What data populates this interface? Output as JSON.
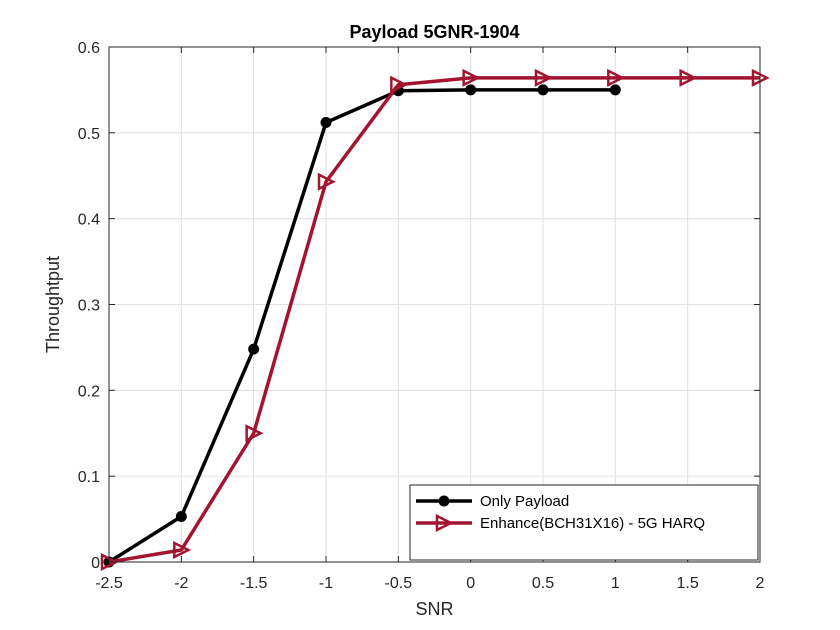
{
  "chart_data": {
    "type": "line",
    "title": "Payload 5GNR-1904",
    "xlabel": "SNR",
    "ylabel": "Throughtput",
    "xlim": [
      -2.5,
      2
    ],
    "ylim": [
      0,
      0.6
    ],
    "xticks": [
      "-2.5",
      "-2",
      "-1.5",
      "-1",
      "-0.5",
      "0",
      "0.5",
      "1",
      "1.5",
      "2"
    ],
    "yticks": [
      "0",
      "0.1",
      "0.2",
      "0.3",
      "0.4",
      "0.5",
      "0.6"
    ],
    "grid": true,
    "legend_position": "bottom-right",
    "series": [
      {
        "name": "Only Payload",
        "color": "#000000",
        "marker": "circle",
        "x": [
          -2.5,
          -2,
          -1.5,
          -1,
          -0.5,
          0,
          0.5,
          1
        ],
        "y": [
          0,
          0.053,
          0.248,
          0.512,
          0.549,
          0.55,
          0.55,
          0.55
        ]
      },
      {
        "name": "Enhance(BCH31X16) - 5G HARQ",
        "color": "#a2142f",
        "marker": "triangle-right",
        "x": [
          -2.5,
          -2,
          -1.5,
          -1,
          -0.5,
          0,
          0.5,
          1,
          1.5,
          2
        ],
        "y": [
          0,
          0.014,
          0.15,
          0.443,
          0.556,
          0.564,
          0.564,
          0.564,
          0.564,
          0.564
        ]
      }
    ]
  }
}
